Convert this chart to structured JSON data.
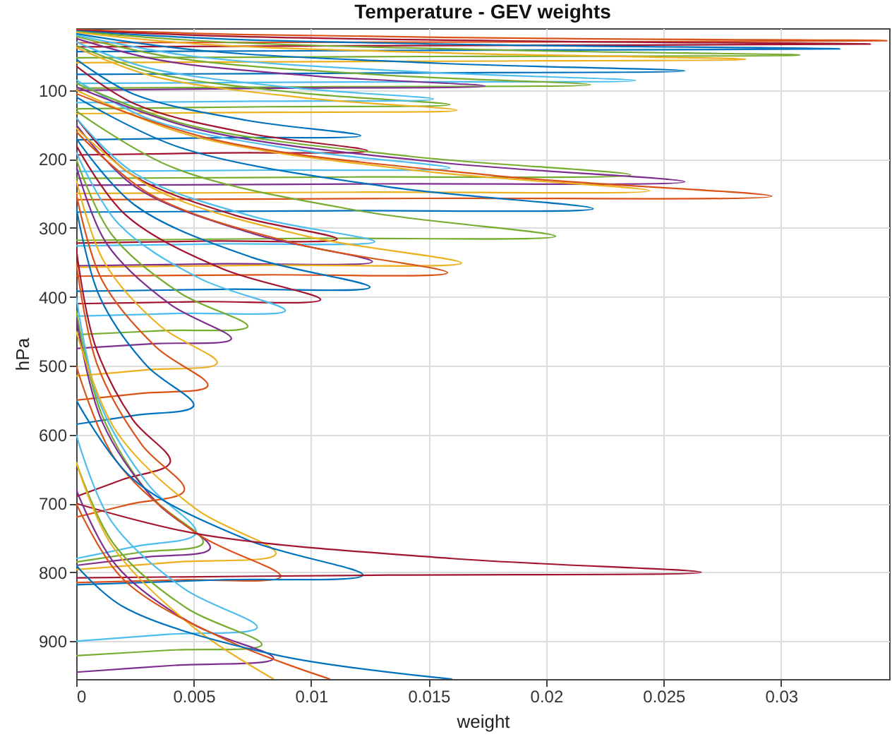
{
  "chart_data": {
    "type": "line",
    "title": "Temperature - GEV weights",
    "xlabel": "weight",
    "ylabel": "hPa",
    "xlim": [
      0,
      0.0346
    ],
    "ylim": [
      955,
      10
    ],
    "xticks": [
      0,
      0.005,
      0.01,
      0.015,
      0.02,
      0.025,
      0.03
    ],
    "yticks": [
      100,
      200,
      300,
      400,
      500,
      600,
      700,
      800,
      900
    ],
    "grid": true,
    "series": [
      {
        "color": "#d95319",
        "x": [
          0,
          0.0069,
          0.0207,
          0.0345,
          0.0173,
          0
        ],
        "values": [
          12,
          19,
          25,
          28,
          30,
          31
        ]
      },
      {
        "color": "#a2142f",
        "x": [
          0,
          0.0068,
          0.0203,
          0.0338,
          0.0169,
          0
        ],
        "values": [
          13,
          22,
          29,
          33,
          35,
          37
        ]
      },
      {
        "color": "#0072bd",
        "x": [
          0,
          0.0065,
          0.0195,
          0.0325,
          0.0163,
          0
        ],
        "values": [
          14,
          26,
          35,
          40,
          42,
          44
        ]
      },
      {
        "color": "#77ac30",
        "x": [
          0,
          0.0062,
          0.0185,
          0.0308,
          0.0154,
          0
        ],
        "values": [
          15,
          30,
          42,
          49,
          51,
          53
        ]
      },
      {
        "color": "#edb120",
        "x": [
          0,
          0.0057,
          0.0171,
          0.0285,
          0.0143,
          0
        ],
        "values": [
          16,
          34,
          47,
          55,
          58,
          60
        ]
      },
      {
        "color": "#0072bd",
        "x": [
          0,
          0.0052,
          0.0155,
          0.0259,
          0.013,
          0
        ],
        "values": [
          18,
          42,
          61,
          72,
          75,
          77
        ]
      },
      {
        "color": "#4dbeee",
        "x": [
          0,
          0.0048,
          0.0143,
          0.0238,
          0.0119,
          0
        ],
        "values": [
          20,
          50,
          73,
          86,
          88,
          90
        ]
      },
      {
        "color": "#77ac30",
        "x": [
          0,
          0.0044,
          0.0131,
          0.0219,
          0.011,
          0
        ],
        "values": [
          22,
          54,
          78,
          92,
          95,
          97
        ]
      },
      {
        "color": "#7e2f8e",
        "x": [
          0,
          0.0035,
          0.0104,
          0.0174,
          0.0087,
          0
        ],
        "values": [
          25,
          56,
          80,
          94,
          97,
          100
        ]
      },
      {
        "color": "#77ac30",
        "x": [
          0,
          0.0032,
          0.0095,
          0.0159,
          0.008,
          0
        ],
        "values": [
          35,
          74,
          104,
          121,
          124,
          127
        ]
      },
      {
        "color": "#4dbeee",
        "x": [
          0,
          0.003,
          0.0091,
          0.0152,
          0.0076,
          0
        ],
        "values": [
          30,
          67,
          96,
          113,
          116,
          118
        ]
      },
      {
        "color": "#edb120",
        "x": [
          0,
          0.0032,
          0.0097,
          0.0162,
          0.0081,
          0
        ],
        "values": [
          38,
          79,
          111,
          129,
          132,
          134
        ]
      },
      {
        "color": "#0072bd",
        "x": [
          0,
          0.0024,
          0.0073,
          0.0121,
          0.0061,
          0
        ],
        "values": [
          55,
          105,
          144,
          166,
          169,
          172
        ]
      },
      {
        "color": "#a2142f",
        "x": [
          0,
          0.0025,
          0.0074,
          0.0124,
          0.0062,
          0
        ],
        "values": [
          65,
          120,
          163,
          188,
          191,
          194
        ]
      },
      {
        "color": "#4dbeee",
        "x": [
          0,
          0.0032,
          0.0095,
          0.0159,
          0.008,
          0
        ],
        "values": [
          85,
          143,
          187,
          213,
          216,
          218
        ]
      },
      {
        "color": "#77ac30",
        "x": [
          0,
          0.0047,
          0.0142,
          0.0236,
          0.0118,
          0
        ],
        "values": [
          90,
          150,
          196,
          223,
          226,
          228
        ]
      },
      {
        "color": "#7e2f8e",
        "x": [
          0,
          0.0052,
          0.0155,
          0.0259,
          0.013,
          0
        ],
        "values": [
          95,
          157,
          205,
          233,
          236,
          238
        ]
      },
      {
        "color": "#edb120",
        "x": [
          0,
          0.0049,
          0.0146,
          0.0244,
          0.0122,
          0
        ],
        "values": [
          100,
          166,
          217,
          246,
          248,
          250
        ]
      },
      {
        "color": "#d95319",
        "x": [
          0,
          0.0059,
          0.0178,
          0.0296,
          0.0148,
          0
        ],
        "values": [
          105,
          172,
          224,
          254,
          257,
          259
        ]
      },
      {
        "color": "#0072bd",
        "x": [
          0,
          0.0044,
          0.0132,
          0.022,
          0.011,
          0
        ],
        "values": [
          110,
          183,
          240,
          272,
          275,
          277
        ]
      },
      {
        "color": "#77ac30",
        "x": [
          0,
          0.0041,
          0.0122,
          0.0204,
          0.0102,
          0
        ],
        "values": [
          130,
          212,
          276,
          312,
          315,
          318
        ]
      },
      {
        "color": "#a2142f",
        "x": [
          0,
          0.0022,
          0.0067,
          0.0111,
          0.0056,
          0
        ],
        "values": [
          140,
          219,
          281,
          316,
          319,
          322
        ]
      },
      {
        "color": "#4dbeee",
        "x": [
          0,
          0.0025,
          0.0076,
          0.0127,
          0.0064,
          0
        ],
        "values": [
          140,
          221,
          284,
          320,
          323,
          326
        ]
      },
      {
        "color": "#7e2f8e",
        "x": [
          0,
          0.0025,
          0.0076,
          0.0126,
          0.0063,
          0
        ],
        "values": [
          150,
          240,
          309,
          349,
          352,
          355
        ]
      },
      {
        "color": "#edb120",
        "x": [
          0,
          0.0033,
          0.0098,
          0.0164,
          0.0082,
          0
        ],
        "values": [
          155,
          243,
          312,
          351,
          354,
          357
        ]
      },
      {
        "color": "#d95319",
        "x": [
          0,
          0.0032,
          0.0095,
          0.0158,
          0.0079,
          0
        ],
        "values": [
          160,
          252,
          324,
          365,
          368,
          370
        ]
      },
      {
        "color": "#0072bd",
        "x": [
          0,
          0.0025,
          0.0075,
          0.0125,
          0.0063,
          0
        ],
        "values": [
          170,
          267,
          343,
          386,
          389,
          392
        ]
      },
      {
        "color": "#a2142f",
        "x": [
          0,
          0.0021,
          0.0062,
          0.0104,
          0.0052,
          0
        ],
        "values": [
          180,
          281,
          359,
          404,
          407,
          410
        ]
      },
      {
        "color": "#4dbeee",
        "x": [
          0,
          0.0018,
          0.0053,
          0.0089,
          0.0045,
          0
        ],
        "values": [
          190,
          294,
          374,
          420,
          424,
          428
        ]
      },
      {
        "color": "#77ac30",
        "x": [
          0,
          0.0015,
          0.0044,
          0.0073,
          0.0037,
          0
        ],
        "values": [
          200,
          309,
          394,
          443,
          449,
          455
        ]
      },
      {
        "color": "#7e2f8e",
        "x": [
          0,
          0.0013,
          0.004,
          0.0066,
          0.0033,
          0
        ],
        "values": [
          210,
          323,
          411,
          461,
          468,
          475
        ]
      },
      {
        "color": "#edb120",
        "x": [
          0,
          0.0012,
          0.0036,
          0.006,
          0.003,
          0
        ],
        "values": [
          230,
          350,
          443,
          496,
          506,
          515
        ]
      },
      {
        "color": "#d95319",
        "x": [
          0,
          0.0011,
          0.0034,
          0.0056,
          0.0028,
          0
        ],
        "values": [
          250,
          376,
          473,
          529,
          540,
          550
        ]
      },
      {
        "color": "#0072bd",
        "x": [
          0,
          0.001,
          0.003,
          0.005,
          0.0025,
          0
        ],
        "values": [
          270,
          400,
          500,
          558,
          572,
          585
        ]
      },
      {
        "color": "#a2142f",
        "x": [
          0,
          0.0008,
          0.0024,
          0.004,
          0.002,
          0
        ],
        "values": [
          330,
          470,
          578,
          640,
          665,
          690
        ]
      },
      {
        "color": "#d95319",
        "x": [
          0,
          0.0009,
          0.0028,
          0.0046,
          0.0023,
          0
        ],
        "values": [
          350,
          499,
          615,
          681,
          701,
          720
        ]
      },
      {
        "color": "#4dbeee",
        "x": [
          0,
          0.001,
          0.0031,
          0.0051,
          0.0026,
          0
        ],
        "values": [
          400,
          554,
          674,
          743,
          762,
          780
        ]
      },
      {
        "color": "#77ac30",
        "x": [
          0,
          0.0011,
          0.0032,
          0.0054,
          0.0027,
          0
        ],
        "values": [
          420,
          572,
          690,
          757,
          771,
          785
        ]
      },
      {
        "color": "#7e2f8e",
        "x": [
          0,
          0.0011,
          0.0034,
          0.0057,
          0.0029,
          0
        ],
        "values": [
          430,
          581,
          698,
          765,
          778,
          790
        ]
      },
      {
        "color": "#edb120",
        "x": [
          0,
          0.0017,
          0.0051,
          0.0085,
          0.0043,
          0
        ],
        "values": [
          450,
          595,
          708,
          773,
          785,
          796
        ]
      },
      {
        "color": "#d95319",
        "x": [
          0,
          0.0017,
          0.0052,
          0.0087,
          0.0044,
          0
        ],
        "values": [
          500,
          638,
          745,
          806,
          811,
          815
        ]
      },
      {
        "color": "#0072bd",
        "x": [
          0,
          0.0024,
          0.0073,
          0.0122,
          0.0061,
          0
        ],
        "values": [
          550,
          664,
          753,
          804,
          811,
          818
        ]
      },
      {
        "color": "#a2142f",
        "x": [
          0,
          0.0053,
          0.016,
          0.0266,
          0.0133,
          0
        ],
        "values": [
          700,
          745,
          780,
          800,
          804,
          808
        ]
      },
      {
        "color": "#4dbeee",
        "x": [
          0,
          0.0015,
          0.0046,
          0.0077,
          0.0039,
          0
        ],
        "values": [
          600,
          726,
          824,
          880,
          890,
          900
        ]
      },
      {
        "color": "#77ac30",
        "x": [
          0,
          0.0016,
          0.0047,
          0.0079,
          0.004,
          0
        ],
        "values": [
          640,
          759,
          852,
          905,
          913,
          921
        ]
      },
      {
        "color": "#7e2f8e",
        "x": [
          0,
          0.0017,
          0.005,
          0.0084,
          0.0042,
          0
        ],
        "values": [
          680,
          790,
          876,
          925,
          935,
          945
        ]
      },
      {
        "color": "#edb120",
        "x": [
          0,
          0.0015,
          0.005,
          0.0084
        ],
        "values": [
          640,
          760,
          880,
          955
        ]
      },
      {
        "color": "#d95319",
        "x": [
          0,
          0.002,
          0.0065,
          0.0108
        ],
        "values": [
          700,
          810,
          900,
          955
        ]
      },
      {
        "color": "#0072bd",
        "x": [
          0,
          0.002,
          0.0085,
          0.016
        ],
        "values": [
          790,
          850,
          920,
          955
        ]
      }
    ]
  }
}
